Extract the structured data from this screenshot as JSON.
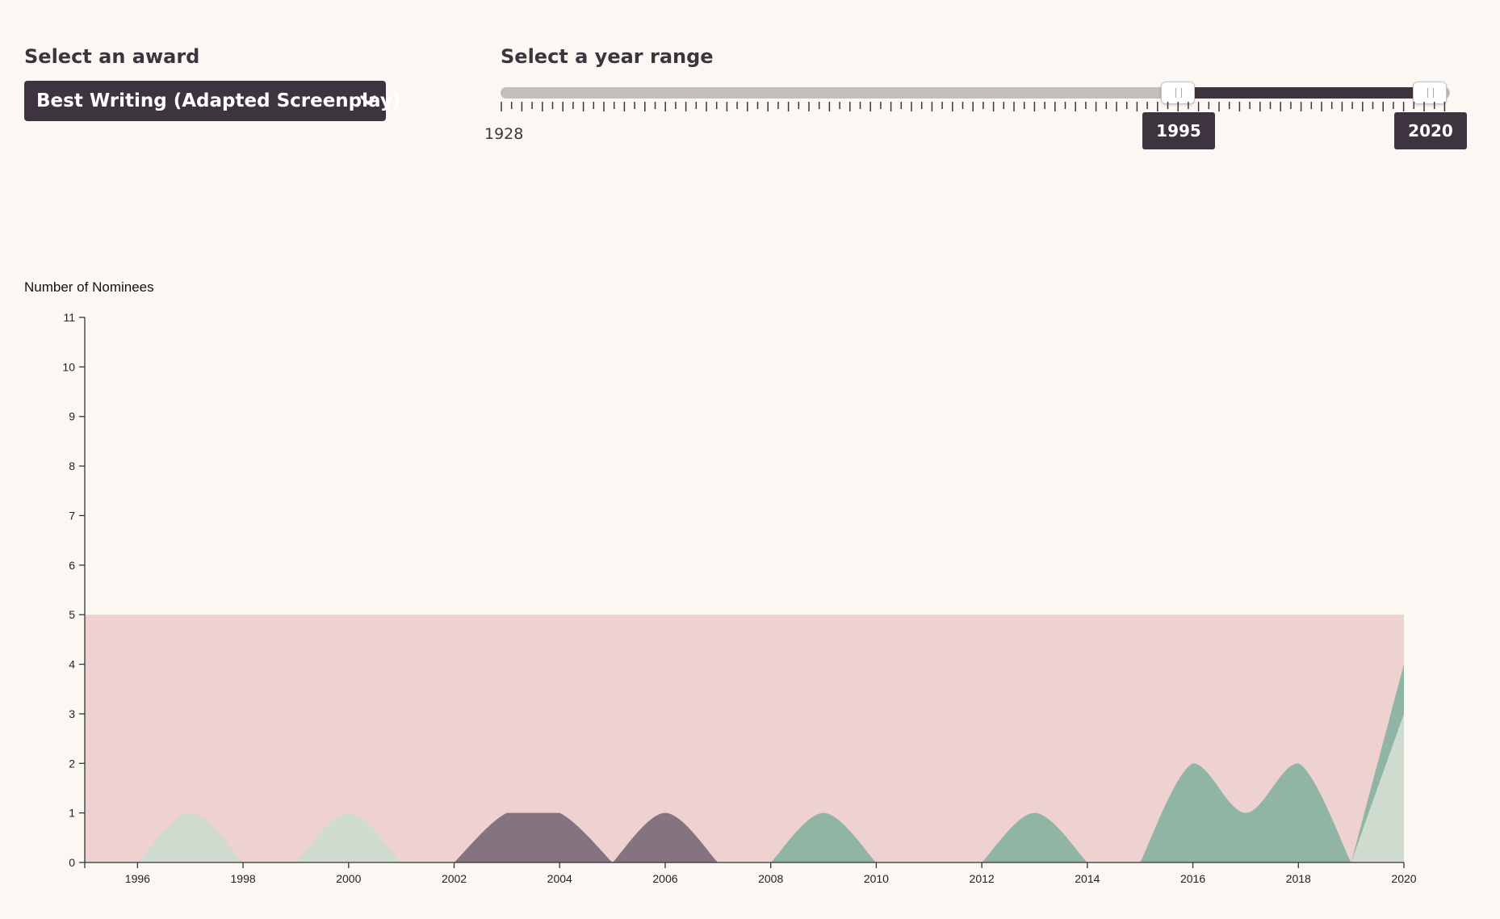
{
  "controls": {
    "award_label": "Select an award",
    "award_selected": "Best Writing (Adapted Screenplay)",
    "year_label": "Select a year range",
    "slider_min_year": "1928",
    "range_start": "1995",
    "range_end": "2020"
  },
  "colors": {
    "background": "#fbf8f3",
    "dark": "#3d3440",
    "band": "#eed2cf",
    "light_green": "#d0dbcf",
    "purple": "#857480",
    "teal": "#91b5a5",
    "track": "#c2bebc"
  },
  "chart_data": {
    "type": "area",
    "ylabel": "Number of Nominees",
    "ylim": [
      0,
      11
    ],
    "xlim": [
      1995,
      2020
    ],
    "x_ticks": [
      "1996",
      "1998",
      "2000",
      "2002",
      "2004",
      "2006",
      "2008",
      "2010",
      "2012",
      "2014",
      "2016",
      "2018",
      "2020"
    ],
    "y_ticks": [
      "0",
      "1",
      "2",
      "3",
      "4",
      "5",
      "6",
      "7",
      "8",
      "9",
      "10",
      "11"
    ],
    "band": {
      "from": 0,
      "to": 5
    },
    "series": [
      {
        "color": "#d0dbcf",
        "points": [
          [
            1996,
            0
          ],
          [
            1997,
            1
          ],
          [
            1998,
            0
          ]
        ]
      },
      {
        "color": "#d0dbcf",
        "points": [
          [
            1999,
            0
          ],
          [
            2000,
            1
          ],
          [
            2001,
            0
          ]
        ]
      },
      {
        "color": "#857480",
        "points": [
          [
            2002,
            0
          ],
          [
            2003,
            1
          ],
          [
            2004,
            1
          ],
          [
            2005,
            0
          ]
        ]
      },
      {
        "color": "#857480",
        "points": [
          [
            2005,
            0
          ],
          [
            2006,
            1
          ],
          [
            2007,
            0
          ]
        ]
      },
      {
        "color": "#91b5a5",
        "points": [
          [
            2008,
            0
          ],
          [
            2009,
            1
          ],
          [
            2010,
            0
          ]
        ]
      },
      {
        "color": "#91b5a5",
        "points": [
          [
            2012,
            0
          ],
          [
            2013,
            1
          ],
          [
            2014,
            0
          ]
        ]
      },
      {
        "color": "#91b5a5",
        "points": [
          [
            2015,
            0
          ],
          [
            2016,
            2
          ],
          [
            2017,
            1
          ],
          [
            2018,
            2
          ],
          [
            2019,
            0
          ]
        ]
      },
      {
        "color": "#91b5a5",
        "points": [
          [
            2019,
            0
          ],
          [
            2020,
            4
          ]
        ]
      },
      {
        "color": "#d0dbcf",
        "points": [
          [
            2019,
            0
          ],
          [
            2020,
            3
          ]
        ]
      }
    ]
  }
}
